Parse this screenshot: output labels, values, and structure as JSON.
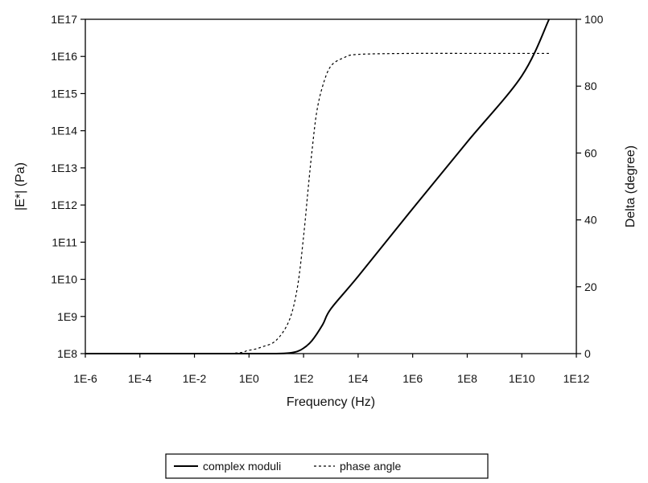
{
  "chart_data": {
    "type": "line",
    "title": "",
    "xlabel": "Frequency (Hz)",
    "ylabel_left": "|E*| (Pa)",
    "ylabel_right": "Delta (degree)",
    "x_scale": "log",
    "y_left_scale": "log",
    "xlim": [
      1e-06,
      1000000000000.0
    ],
    "ylim_left": [
      100000000.0,
      1e+17
    ],
    "ylim_right": [
      0,
      100
    ],
    "grid": false,
    "legend_position": "bottom",
    "x_tick_labels": [
      "1E-6",
      "1E-4",
      "1E-2",
      "1E0",
      "1E2",
      "1E4",
      "1E6",
      "1E8",
      "1E10",
      "1E12"
    ],
    "y_left_tick_labels": [
      "1E8",
      "1E9",
      "1E10",
      "1E11",
      "1E12",
      "1E13",
      "1E14",
      "1E15",
      "1E16",
      "1E17"
    ],
    "y_right_tick_labels": [
      "0",
      "20",
      "40",
      "60",
      "80",
      "100"
    ],
    "series": [
      {
        "name": "complex moduli",
        "axis": "left",
        "line_style": "solid",
        "color": "#000000",
        "x": [
          1e-06,
          0.0001,
          0.01,
          1,
          10,
          30,
          60,
          100,
          200,
          500,
          1000,
          10000.0,
          1000000.0,
          100000000.0,
          10000000000.0,
          100000000000.0
        ],
        "y": [
          100000000.0,
          100000000.0,
          100000000.0,
          100000000.0,
          100000000.0,
          104000000.0,
          115000000.0,
          140000000.0,
          220000000.0,
          600000000.0,
          1600000000.0,
          12000000000.0,
          800000000000.0,
          50000000000000.0,
          3000000000000000.0,
          1e+17
        ]
      },
      {
        "name": "phase angle",
        "axis": "right",
        "line_style": "dashed",
        "color": "#000000",
        "x": [
          1e-06,
          0.1,
          1,
          3,
          10,
          30,
          60,
          100,
          150,
          200,
          300,
          500,
          1000,
          3000,
          10000.0,
          1000000.0,
          100000000.0,
          10000000000.0,
          100000000000.0
        ],
        "y": [
          0,
          0,
          1,
          2,
          4,
          10,
          20,
          35,
          50,
          60,
          72,
          80,
          86,
          88.5,
          89.5,
          89.8,
          89.8,
          89.8,
          89.8
        ]
      }
    ]
  }
}
